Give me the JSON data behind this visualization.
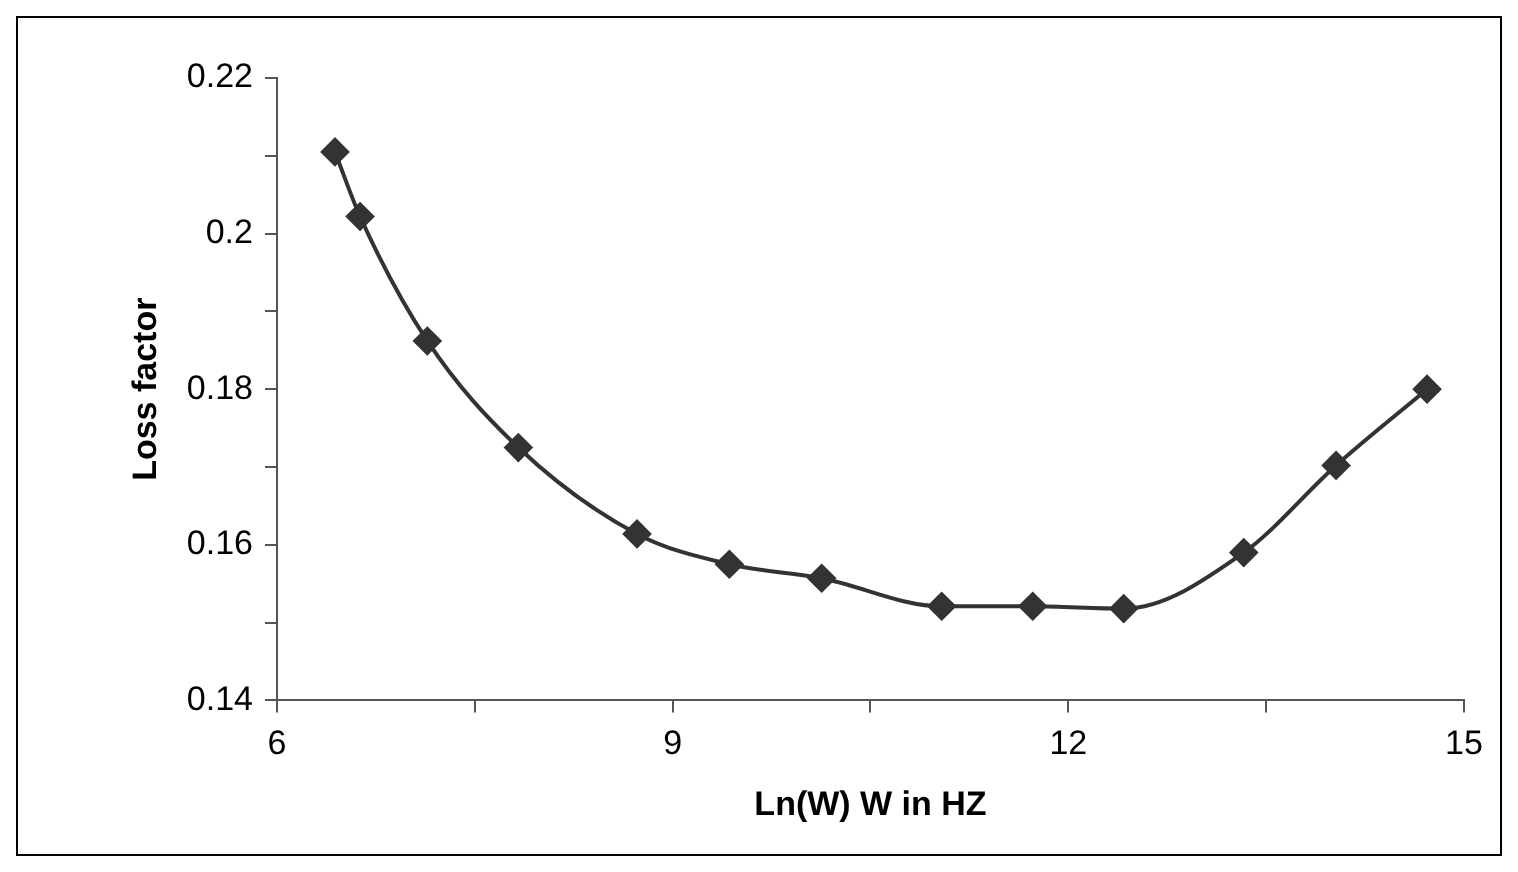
{
  "chart_data": {
    "type": "line",
    "xlabel": "Ln(W) W in HZ",
    "ylabel": "Loss factor",
    "series": [
      {
        "color": "#333333",
        "x": [
          6.44,
          6.63,
          7.14,
          7.83,
          8.73,
          9.43,
          10.13,
          11.04,
          11.73,
          12.42,
          13.33,
          14.03,
          14.72
        ],
        "values": [
          0.2105,
          0.2022,
          0.1862,
          0.1725,
          0.1614,
          0.1575,
          0.1557,
          0.1521,
          0.1521,
          0.1518,
          0.159,
          0.1702,
          0.18
        ]
      }
    ],
    "xlim": [
      6,
      15
    ],
    "xticks": [
      6,
      {
        "value": 7.5,
        "label": null
      },
      9,
      {
        "value": 10.5,
        "label": null
      },
      12,
      {
        "value": 13.5,
        "label": null
      },
      15
    ],
    "ylim": [
      0.14,
      0.22
    ],
    "yticks": [
      0.14,
      {
        "value": 0.15,
        "label": null
      },
      0.16,
      {
        "value": 0.17,
        "label": null
      },
      0.18,
      {
        "value": 0.19,
        "label": null
      },
      0.2,
      {
        "value": 0.21,
        "label": null
      },
      0.22
    ],
    "marker": "diamond",
    "line_style": "solid",
    "grid": false,
    "legend": false
  }
}
